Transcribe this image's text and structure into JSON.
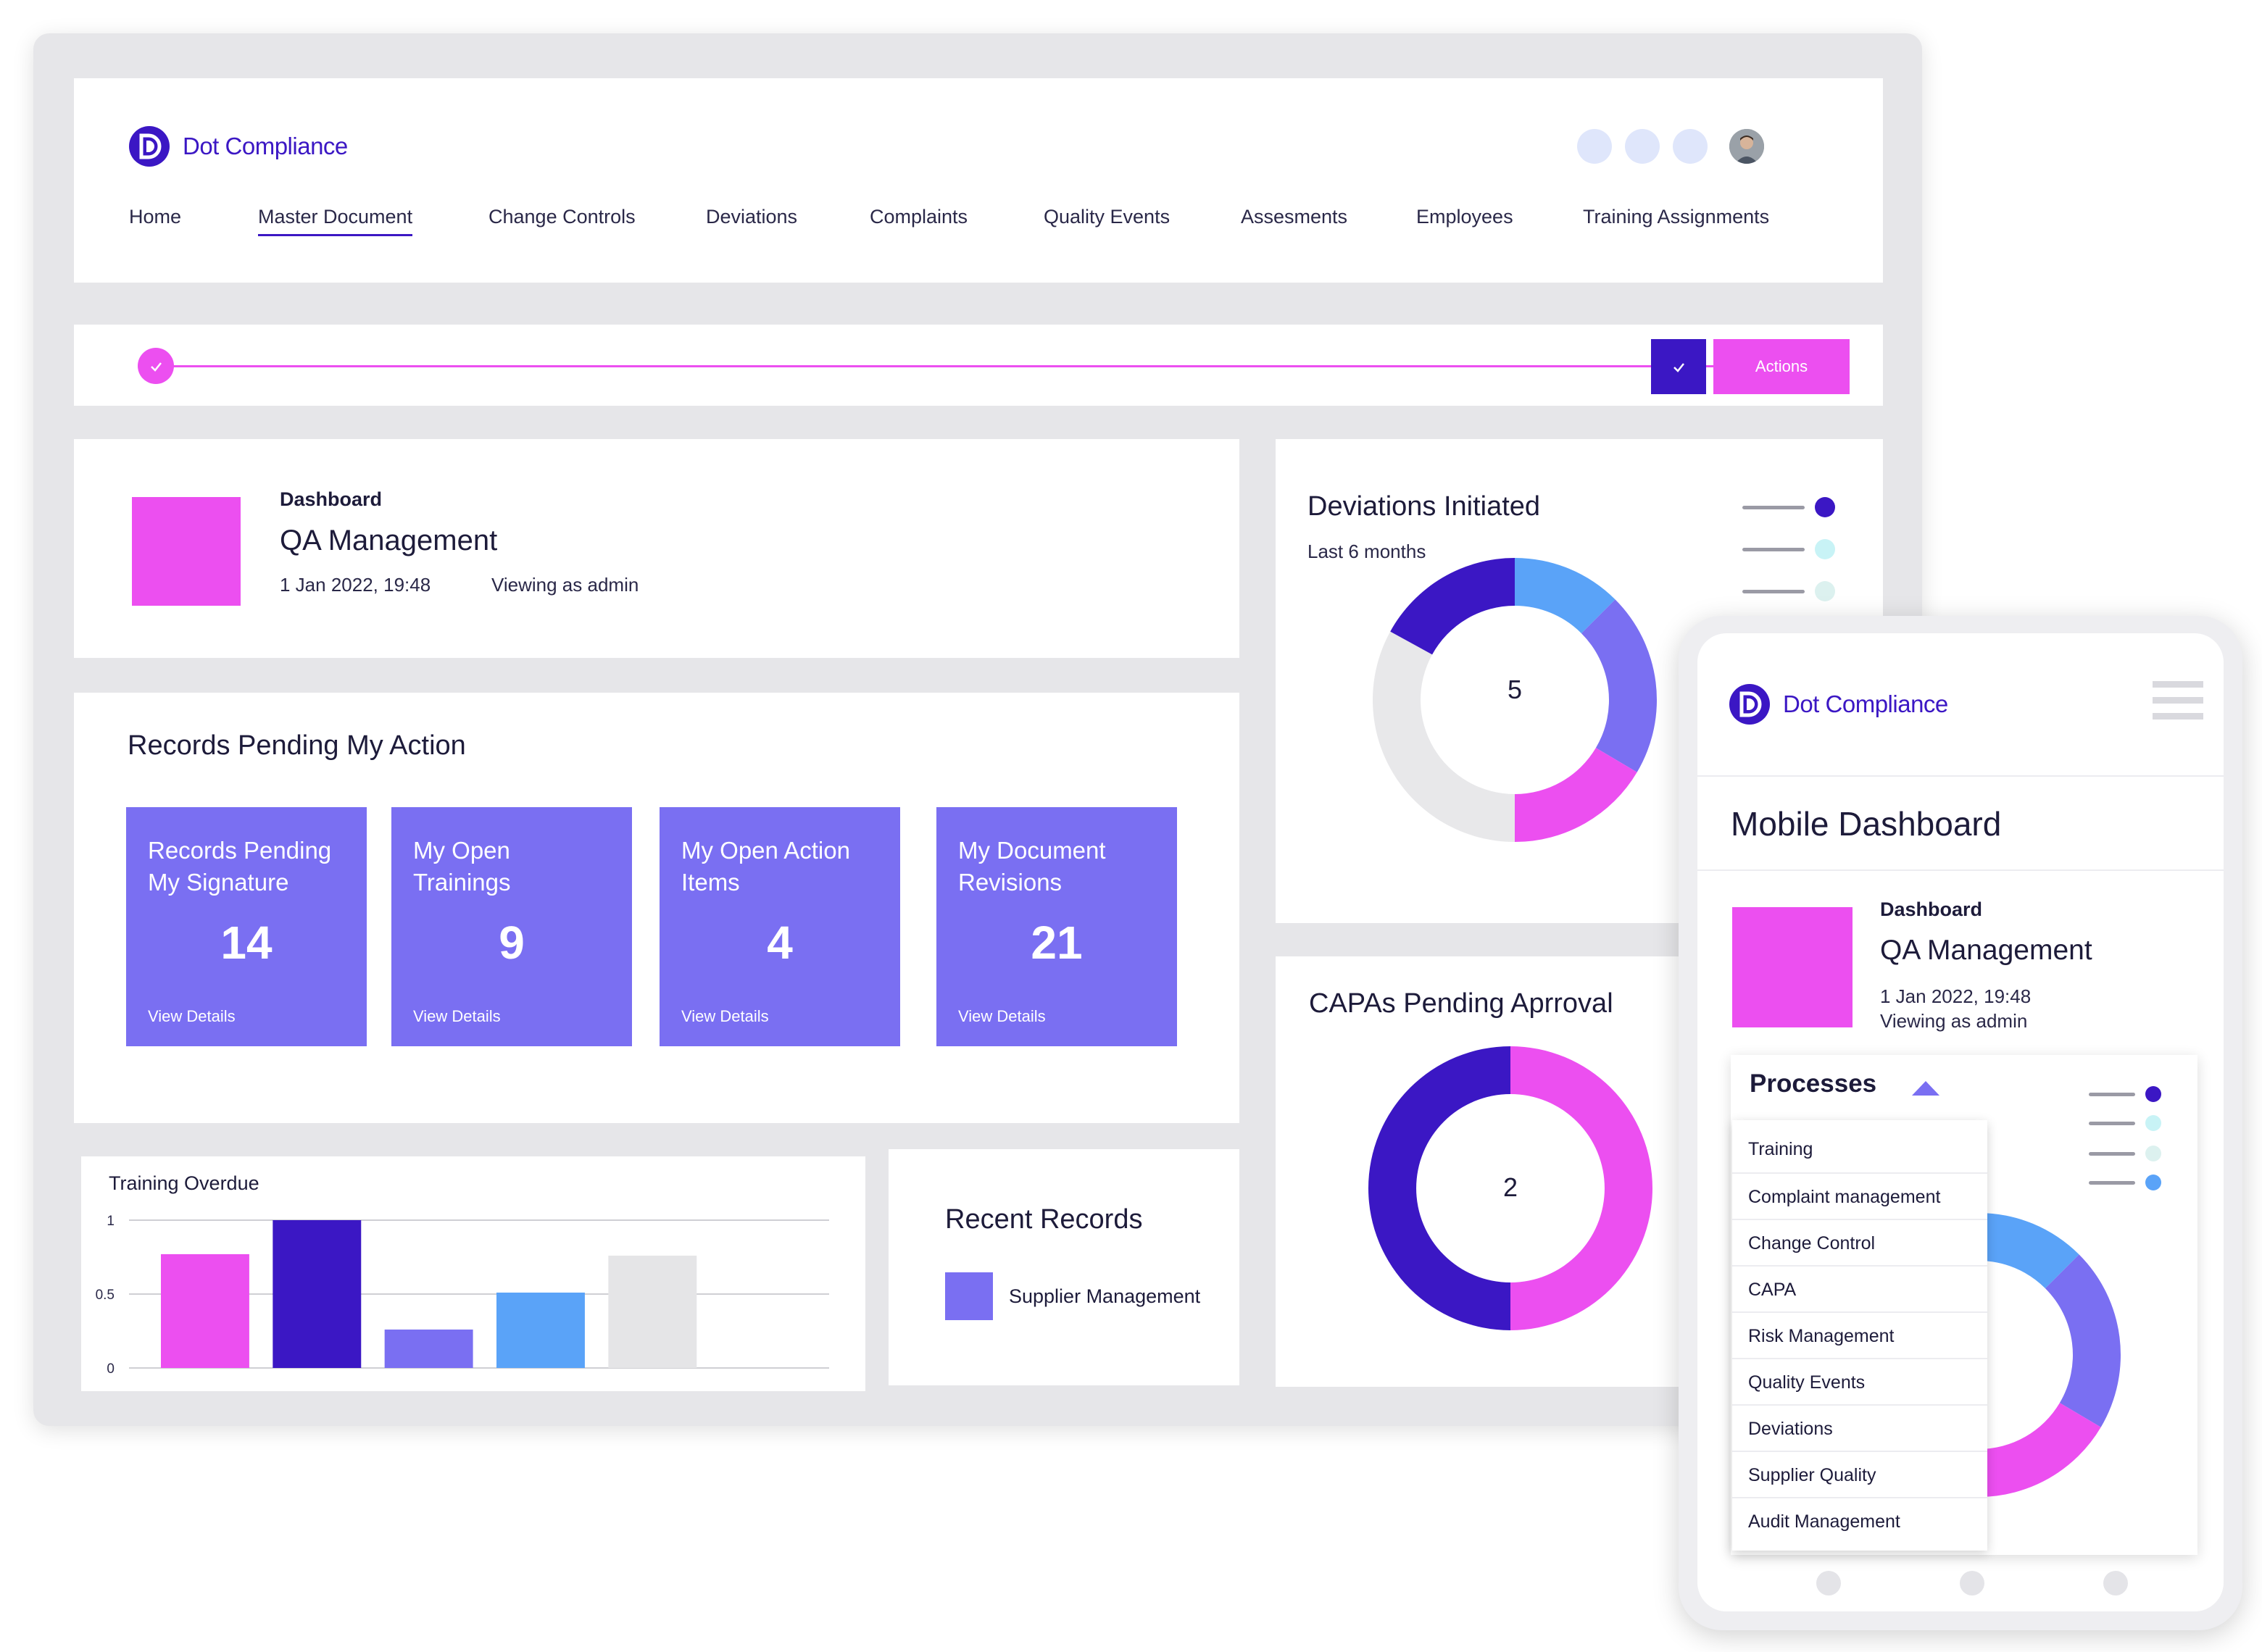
{
  "brand": {
    "name": "Dot Compliance",
    "accent": "#3b17c4",
    "magenta": "#ec4ff0",
    "violet": "#7a6ff2"
  },
  "nav": [
    "Home",
    "Master Document",
    "Change Controls",
    "Deviations",
    "Complaints",
    "Quality Events",
    "Assesments",
    "Employees",
    "Training Assignments"
  ],
  "progress": {
    "actions_label": "Actions"
  },
  "header_card": {
    "label": "Dashboard",
    "title": "QA Management",
    "datetime": "1 Jan 2022, 19:48",
    "viewing": "Viewing as admin"
  },
  "records_pending": {
    "title": "Records Pending My Action",
    "tiles": [
      {
        "line1": "Records Pending",
        "line2": "My Signature",
        "count": "14",
        "link": "View Details"
      },
      {
        "line1": "My Open",
        "line2": "Trainings",
        "count": "9",
        "link": "View Details"
      },
      {
        "line1": "My Open Action",
        "line2": "Items",
        "count": "4",
        "link": "View Details"
      },
      {
        "line1": "My Document",
        "line2": "Revisions",
        "count": "21",
        "link": "View Details"
      }
    ]
  },
  "training_overdue": {
    "title": "Training Overdue",
    "chart_data": {
      "type": "bar",
      "title": "Training Overdue",
      "categories": [
        "",
        "",
        "",
        "",
        "",
        ""
      ],
      "values": [
        0.77,
        1.0,
        0.26,
        0.51,
        0.76,
        0
      ],
      "colors": [
        "#ec4ff0",
        "#3b17c4",
        "#7a6ff2",
        "#5aa3f8",
        "#e5e5e7",
        "#ffffff"
      ],
      "ylim": [
        0,
        1
      ],
      "yticks": [
        "1",
        "0.5",
        "0"
      ],
      "grid": true
    }
  },
  "recent_records": {
    "title": "Recent Records",
    "items": [
      {
        "label": "Supplier Management",
        "color": "#7a6ff2"
      }
    ]
  },
  "deviations": {
    "title": "Deviations Initiated",
    "subtitle": "Last 6 months",
    "center_value": "5",
    "chart_data": {
      "type": "pie",
      "title": "Deviations Initiated",
      "values": [
        0.125,
        0.21,
        0.165,
        0.33,
        0.17
      ],
      "colors": [
        "#5aa3f8",
        "#7a6ff2",
        "#ec4ff0",
        "#e8e8ea",
        "#3b17c4"
      ]
    },
    "legend_colors": [
      "#3b17c4",
      "#c8f3f6",
      "#dcf1ef"
    ]
  },
  "capas": {
    "title": "CAPAs Pending Aprroval",
    "center_value": "2",
    "chart_data": {
      "type": "pie",
      "title": "CAPAs Pending Aprroval",
      "values": [
        0.5,
        0.5
      ],
      "colors": [
        "#ec4ff0",
        "#3b17c4"
      ]
    }
  },
  "mobile": {
    "title": "Mobile Dashboard",
    "label": "Dashboard",
    "card_title": "QA Management",
    "datetime": "1 Jan 2022, 19:48",
    "viewing": "Viewing as admin",
    "processes_label": "Processes",
    "menu": [
      "Training",
      "Complaint management",
      "Change Control",
      "CAPA",
      "Risk Management",
      "Quality Events",
      "Deviations",
      "Supplier Quality",
      "Audit Management"
    ],
    "legend_colors": [
      "#3b17c4",
      "#c8f3f6",
      "#dcf1ef",
      "#5aa3f8"
    ]
  }
}
